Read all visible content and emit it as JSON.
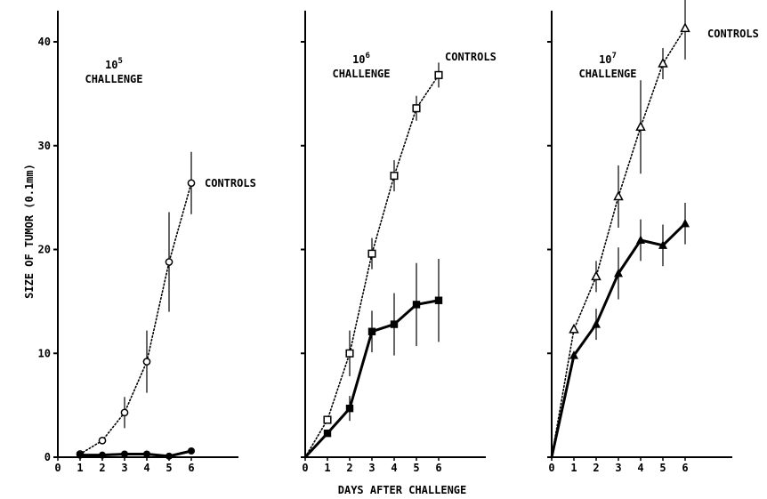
{
  "chart_data": {
    "type": "line",
    "ylabel": "SIZE OF TUMOR (0.1mm)",
    "xlabel": "DAYS AFTER CHALLENGE",
    "ylim": [
      0,
      43
    ],
    "xlim": [
      0,
      8
    ],
    "y_ticks": [
      0,
      10,
      20,
      30,
      40
    ],
    "x_ticks": [
      0,
      1,
      2,
      3,
      4,
      5,
      6
    ],
    "grid": false,
    "panels": [
      {
        "dose_base": "10",
        "dose_exp": "5",
        "challenge_label": "CHALLENGE",
        "series": [
          {
            "name": "CONTROLS",
            "style": "dotted",
            "marker": "open-circle",
            "x": [
              1,
              2,
              3,
              4,
              5,
              6
            ],
            "y": [
              0.3,
              1.6,
              4.3,
              9.2,
              18.8,
              26.4
            ],
            "err": [
              0,
              0,
              1.5,
              3.0,
              4.8,
              3.0
            ]
          },
          {
            "name": "",
            "style": "solid",
            "marker": "filled-circle",
            "x": [
              1,
              2,
              3,
              4,
              5,
              6
            ],
            "y": [
              0.2,
              0.2,
              0.3,
              0.3,
              0.1,
              0.6
            ],
            "err": [
              0,
              0,
              0,
              0,
              0,
              0
            ]
          }
        ]
      },
      {
        "dose_base": "10",
        "dose_exp": "6",
        "challenge_label": "CHALLENGE",
        "series": [
          {
            "name": "CONTROLS",
            "style": "dotted",
            "marker": "open-square",
            "x": [
              0,
              1,
              2,
              3,
              4,
              5,
              6
            ],
            "y": [
              0,
              3.6,
              10.0,
              19.6,
              27.1,
              33.6,
              36.8
            ],
            "err": [
              0,
              0,
              2.2,
              1.5,
              1.5,
              1.2,
              1.2
            ]
          },
          {
            "name": "",
            "style": "solid",
            "marker": "filled-square",
            "x": [
              0,
              1,
              2,
              3,
              4,
              5,
              6
            ],
            "y": [
              0,
              2.3,
              4.7,
              12.1,
              12.8,
              14.7,
              15.1
            ],
            "err": [
              0,
              0,
              1.2,
              2.0,
              3.0,
              4.0,
              4.0
            ]
          }
        ]
      },
      {
        "dose_base": "10",
        "dose_exp": "7",
        "challenge_label": "CHALLENGE",
        "series": [
          {
            "name": "CONTROLS",
            "style": "dotted",
            "marker": "open-triangle",
            "x": [
              0,
              1,
              2,
              3,
              4,
              5,
              6
            ],
            "y": [
              0,
              12.3,
              17.4,
              25.1,
              31.8,
              37.9,
              41.3
            ],
            "err": [
              0,
              0,
              1.5,
              3.0,
              4.5,
              1.5,
              3.0
            ]
          },
          {
            "name": "",
            "style": "solid",
            "marker": "filled-triangle",
            "x": [
              0,
              1,
              2,
              3,
              4,
              5,
              6
            ],
            "y": [
              0,
              9.8,
              12.8,
              17.7,
              20.9,
              20.4,
              22.5
            ],
            "err": [
              0,
              0,
              1.5,
              2.5,
              2.0,
              2.0,
              2.0
            ]
          }
        ]
      }
    ]
  }
}
